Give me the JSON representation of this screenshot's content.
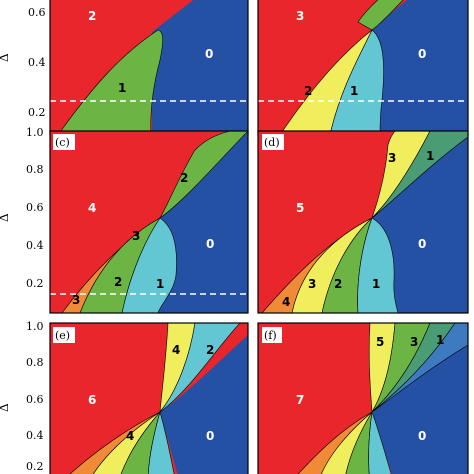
{
  "figure": {
    "ylabel": "Δ",
    "colors": {
      "red": "#e8262b",
      "navy": "#2451a3",
      "green": "#6cb544",
      "cyan": "#62c7d2",
      "yellow": "#f0ee5c",
      "orange": "#f08a36",
      "seagreen": "#4a9c74",
      "blue2": "#3d7ac0",
      "dashed_line": "#ffffff",
      "boundary": "#000000"
    },
    "panels": [
      {
        "id": "a",
        "tag": "",
        "ytick_labels": [
          "0.6",
          "0.4",
          "0.2"
        ],
        "labels": [
          "2",
          "0",
          "1"
        ]
      },
      {
        "id": "b",
        "tag": "",
        "labels": [
          "3",
          "0",
          "2",
          "1"
        ]
      },
      {
        "id": "c",
        "tag": "(c)",
        "ytick_labels": [
          "1.0",
          "0.8",
          "0.6",
          "0.4",
          "0.2"
        ],
        "labels": [
          "4",
          "2",
          "3",
          "2",
          "1",
          "0",
          "3"
        ]
      },
      {
        "id": "d",
        "tag": "(d)",
        "labels": [
          "5",
          "3",
          "1",
          "0",
          "4",
          "3",
          "2",
          "1"
        ]
      },
      {
        "id": "e",
        "tag": "(e)",
        "ytick_labels": [
          "1.0",
          "0.8",
          "0.6",
          "0.4",
          "0.2"
        ],
        "labels": [
          "6",
          "4",
          "2",
          "0",
          "4"
        ]
      },
      {
        "id": "f",
        "tag": "(f)",
        "labels": [
          "7",
          "5",
          "3",
          "1",
          "0"
        ]
      }
    ]
  }
}
